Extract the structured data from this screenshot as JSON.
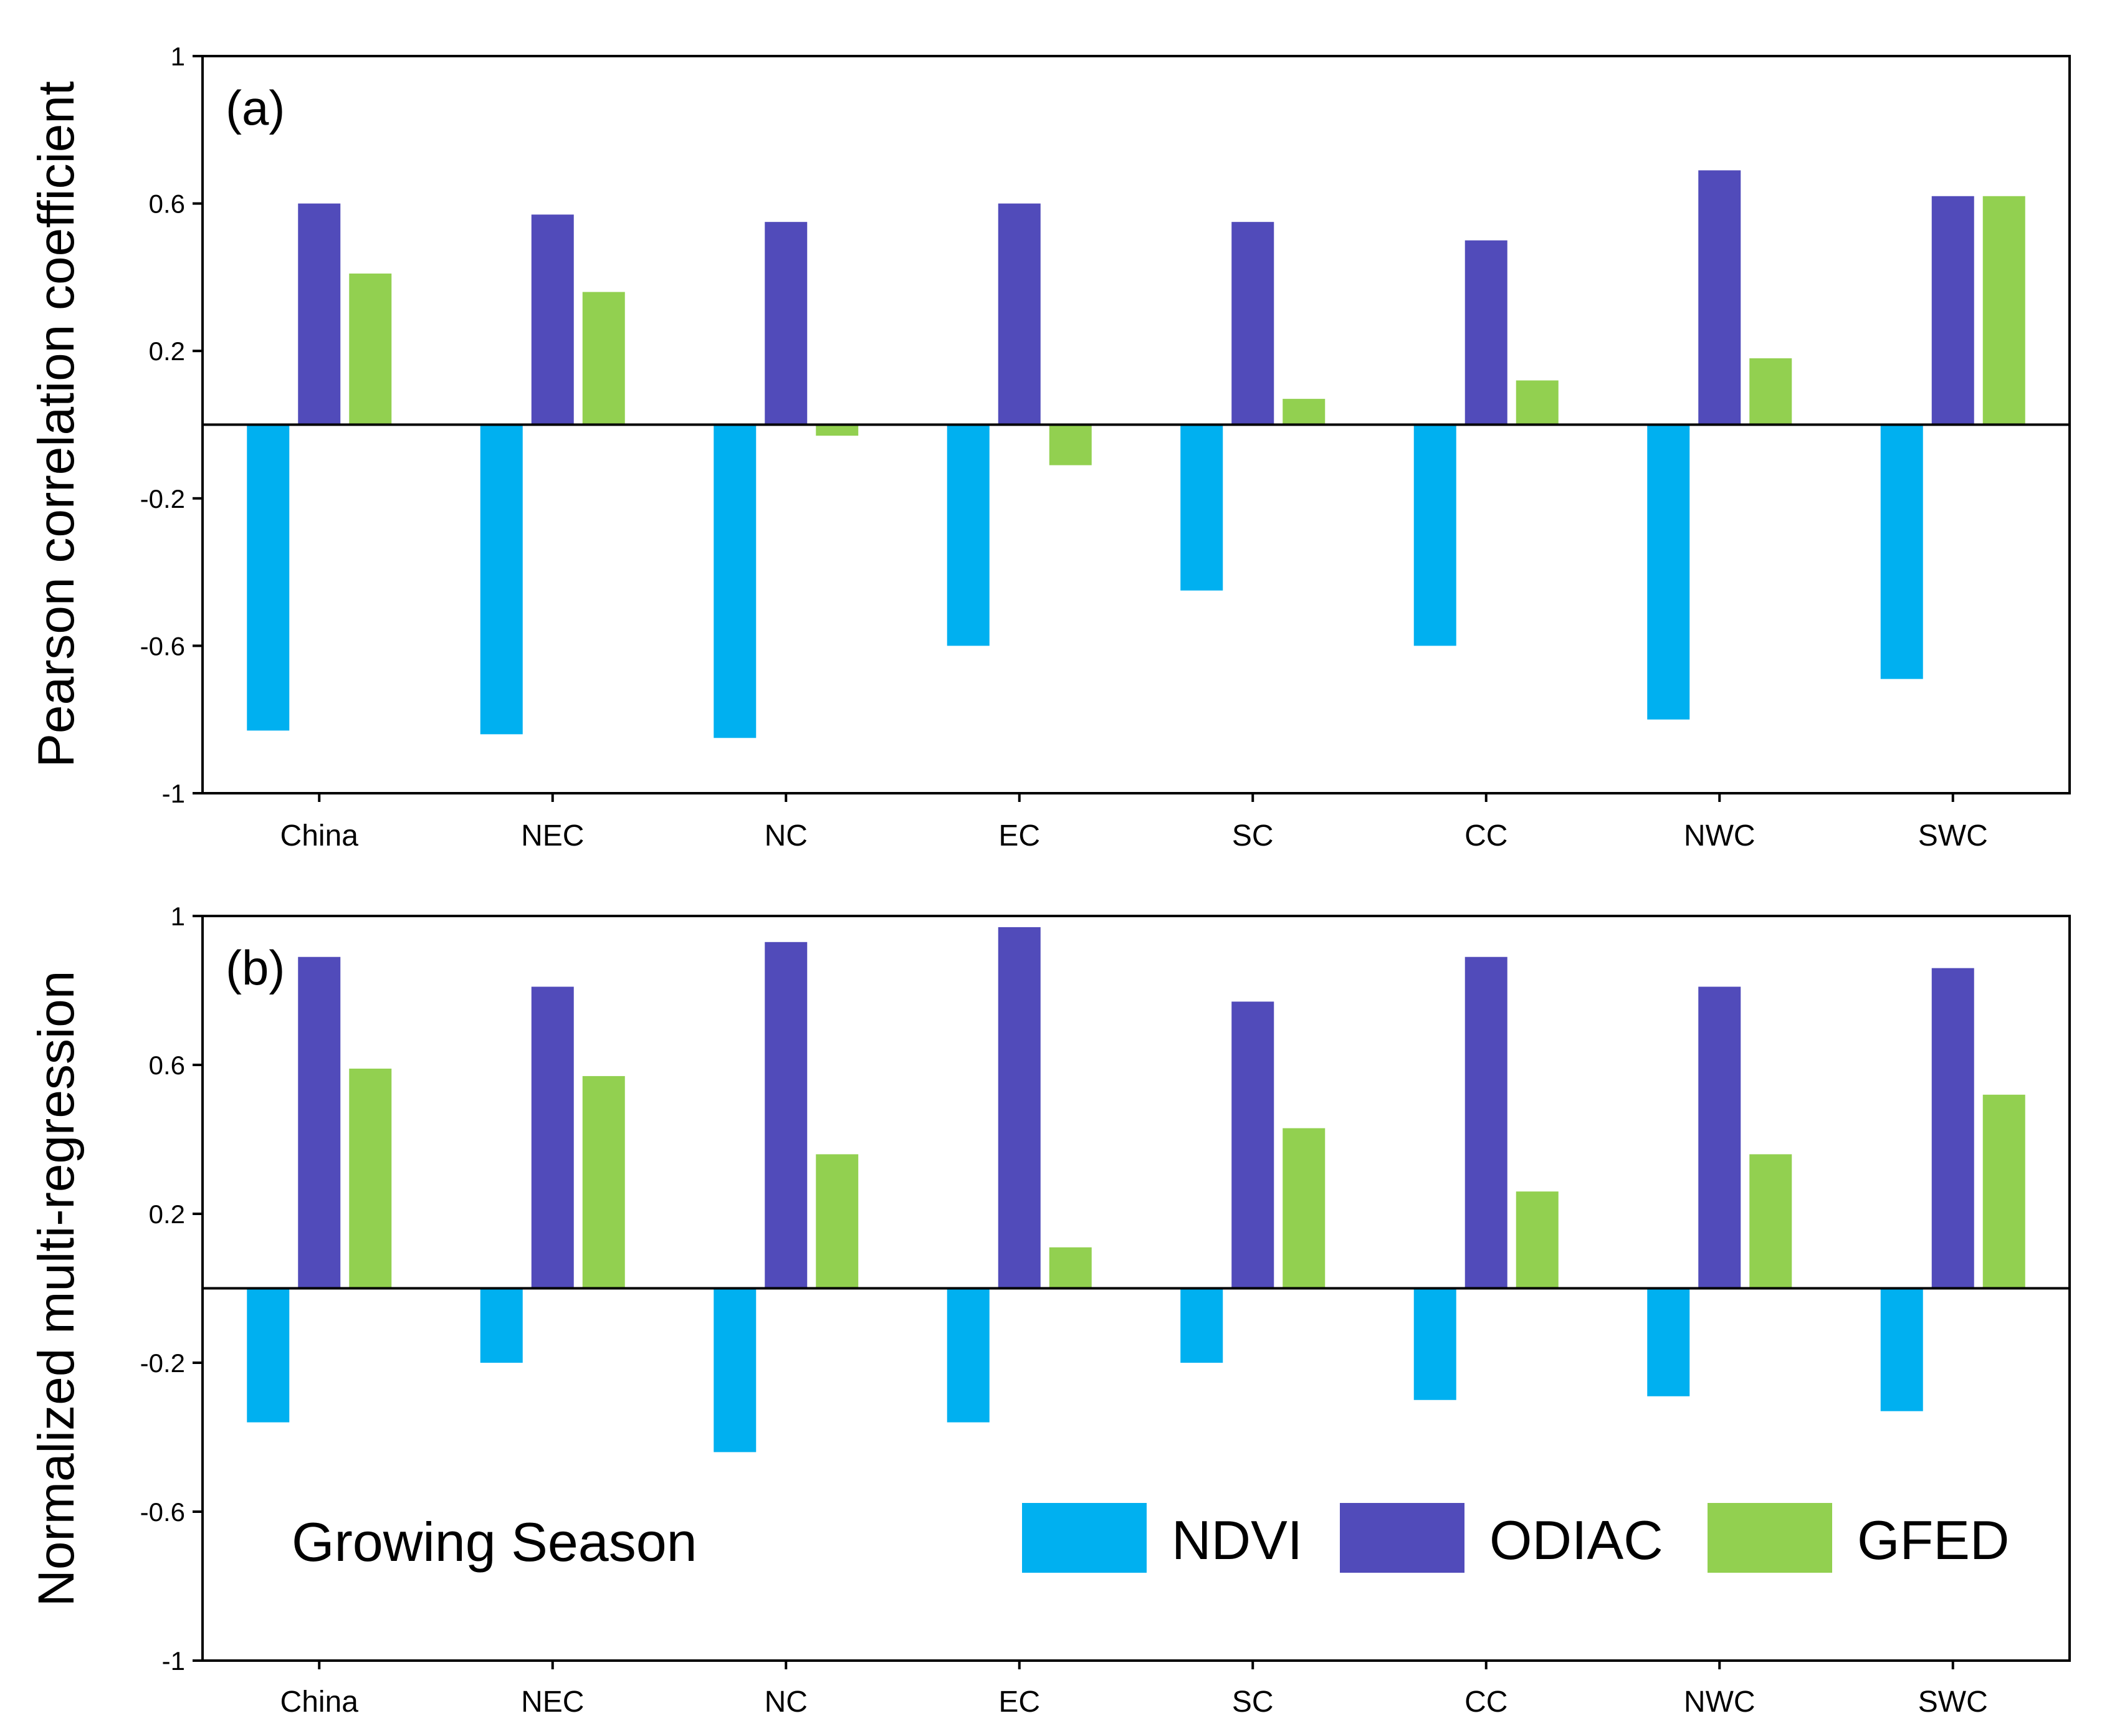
{
  "chart_data": [
    {
      "type": "bar",
      "panel": "(a)",
      "ylabel": "Pearson correlation coefficient",
      "xlabel": "",
      "ylim": [
        -1,
        1
      ],
      "yticks": [
        1,
        0.6,
        0.2,
        -0.2,
        -0.6,
        -1
      ],
      "ytick_labels": [
        "1",
        "0.6",
        "0.2",
        "-0.2",
        "-0.6",
        "-1"
      ],
      "categories": [
        "China",
        "NEC",
        "NC",
        "EC",
        "SC",
        "CC",
        "NWC",
        "SWC"
      ],
      "series": [
        {
          "name": "NDVI",
          "values": [
            -0.83,
            -0.84,
            -0.85,
            -0.6,
            -0.45,
            -0.6,
            -0.8,
            -0.69
          ]
        },
        {
          "name": "ODIAC",
          "values": [
            0.6,
            0.57,
            0.55,
            0.6,
            0.55,
            0.5,
            0.69,
            0.62
          ]
        },
        {
          "name": "GFED",
          "values": [
            0.41,
            0.36,
            -0.03,
            -0.11,
            0.07,
            0.12,
            0.18,
            0.62
          ]
        }
      ]
    },
    {
      "type": "bar",
      "panel": "(b)",
      "ylabel": "Normalized multi-regression",
      "xlabel": "",
      "ylim": [
        -1,
        1
      ],
      "yticks": [
        1,
        0.6,
        0.2,
        -0.2,
        -0.6,
        -1
      ],
      "ytick_labels": [
        "1",
        "0.6",
        "0.2",
        "-0.2",
        "-0.6",
        "-1"
      ],
      "categories": [
        "China",
        "NEC",
        "NC",
        "EC",
        "SC",
        "CC",
        "NWC",
        "SWC"
      ],
      "series": [
        {
          "name": "NDVI",
          "values": [
            -0.36,
            -0.2,
            -0.44,
            -0.36,
            -0.2,
            -0.3,
            -0.29,
            -0.33
          ]
        },
        {
          "name": "ODIAC",
          "values": [
            0.89,
            0.81,
            0.93,
            0.97,
            0.77,
            0.89,
            0.81,
            0.86
          ]
        },
        {
          "name": "GFED",
          "values": [
            0.59,
            0.57,
            0.36,
            0.11,
            0.43,
            0.26,
            0.36,
            0.52
          ]
        }
      ]
    }
  ],
  "legend": {
    "items": [
      {
        "name": "NDVI",
        "color": "#00b0f0"
      },
      {
        "name": "ODIAC",
        "color": "#514bba"
      },
      {
        "name": "GFED",
        "color": "#92d050"
      }
    ]
  },
  "annotation": "Growing Season",
  "colors": {
    "NDVI": "#00b0f0",
    "ODIAC": "#514bba",
    "GFED": "#92d050",
    "axis": "#000000"
  }
}
